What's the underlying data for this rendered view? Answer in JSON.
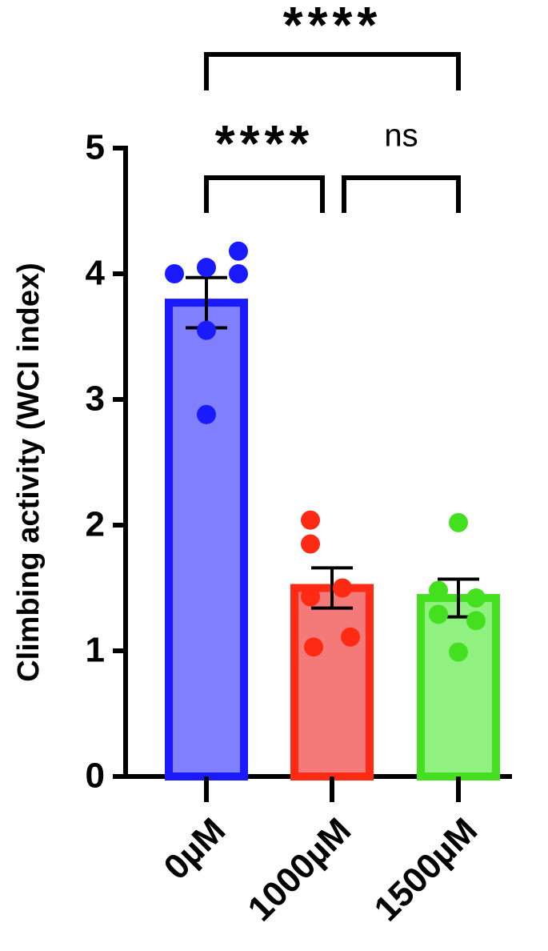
{
  "chart_data": {
    "type": "bar",
    "y_label": "Climbing activity (WCI index)",
    "categories": [
      "0µM",
      "1000µM",
      "1500µM"
    ],
    "values": [
      3.77,
      1.5,
      1.42
    ],
    "errors": [
      0.2,
      0.16,
      0.15
    ],
    "fill_colors": [
      "#8080ff",
      "#f47a7a",
      "#90f080"
    ],
    "colors": [
      "#1a1aff",
      "#ff2a14",
      "#44e020"
    ],
    "points": [
      [
        4.0,
        4.05,
        4.0,
        4.18,
        3.55,
        2.88
      ],
      [
        2.04,
        1.85,
        1.5,
        1.43,
        1.03,
        1.11
      ],
      [
        2.02,
        1.48,
        1.42,
        1.29,
        1.24,
        0.99
      ]
    ],
    "ylim": [
      0,
      5
    ],
    "yticks": [
      0,
      1,
      2,
      3,
      4,
      5
    ],
    "annotations": [
      "****",
      "****",
      "ns"
    ]
  }
}
